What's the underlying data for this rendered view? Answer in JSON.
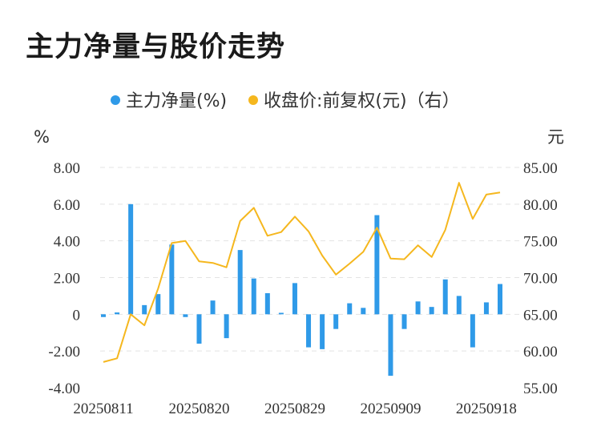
{
  "title": "主力净量与股价走势",
  "legend": {
    "bar_label": "主力净量(%)",
    "line_label": "收盘价:前复权(元)（右）"
  },
  "colors": {
    "bar": "#2f9ae8",
    "line": "#f5b71e",
    "grid": "#e3e3e3"
  },
  "chart_data": {
    "type": "bar+line",
    "left_axis": {
      "unit": "%",
      "min": -4,
      "max": 8,
      "ticks": [
        "-4.00",
        "-2.00",
        "0",
        "2.00",
        "4.00",
        "6.00",
        "8.00"
      ]
    },
    "right_axis": {
      "unit": "元",
      "min": 55,
      "max": 85,
      "ticks": [
        "55.00",
        "60.00",
        "65.00",
        "70.00",
        "75.00",
        "80.00",
        "85.00"
      ]
    },
    "x_labels": [
      "20250811",
      "20250820",
      "20250829",
      "20250909",
      "20250918"
    ],
    "x_label_index": [
      0,
      7,
      14,
      21,
      28
    ],
    "grid": true,
    "legend_position": "top",
    "series": [
      {
        "name": "主力净量(%)",
        "type": "bar",
        "values": [
          -0.15,
          0.1,
          6.0,
          0.5,
          1.1,
          3.8,
          -0.15,
          -1.6,
          0.75,
          -1.3,
          3.5,
          1.95,
          1.15,
          0.08,
          1.7,
          -1.8,
          -1.9,
          -0.8,
          0.6,
          0.35,
          5.4,
          -3.35,
          -0.8,
          0.7,
          0.4,
          1.9,
          1.0,
          -1.8,
          0.65,
          1.65
        ]
      },
      {
        "name": "收盘价:前复权(元)（右）",
        "type": "line",
        "values": [
          58.5,
          59.0,
          65.0,
          63.5,
          68.5,
          74.7,
          75.0,
          72.2,
          72.0,
          71.4,
          77.7,
          79.5,
          75.7,
          76.2,
          78.3,
          76.3,
          73.0,
          70.4,
          71.9,
          73.5,
          76.8,
          72.6,
          72.5,
          74.4,
          72.8,
          76.5,
          82.9,
          78.0,
          81.3,
          81.6
        ]
      }
    ]
  }
}
